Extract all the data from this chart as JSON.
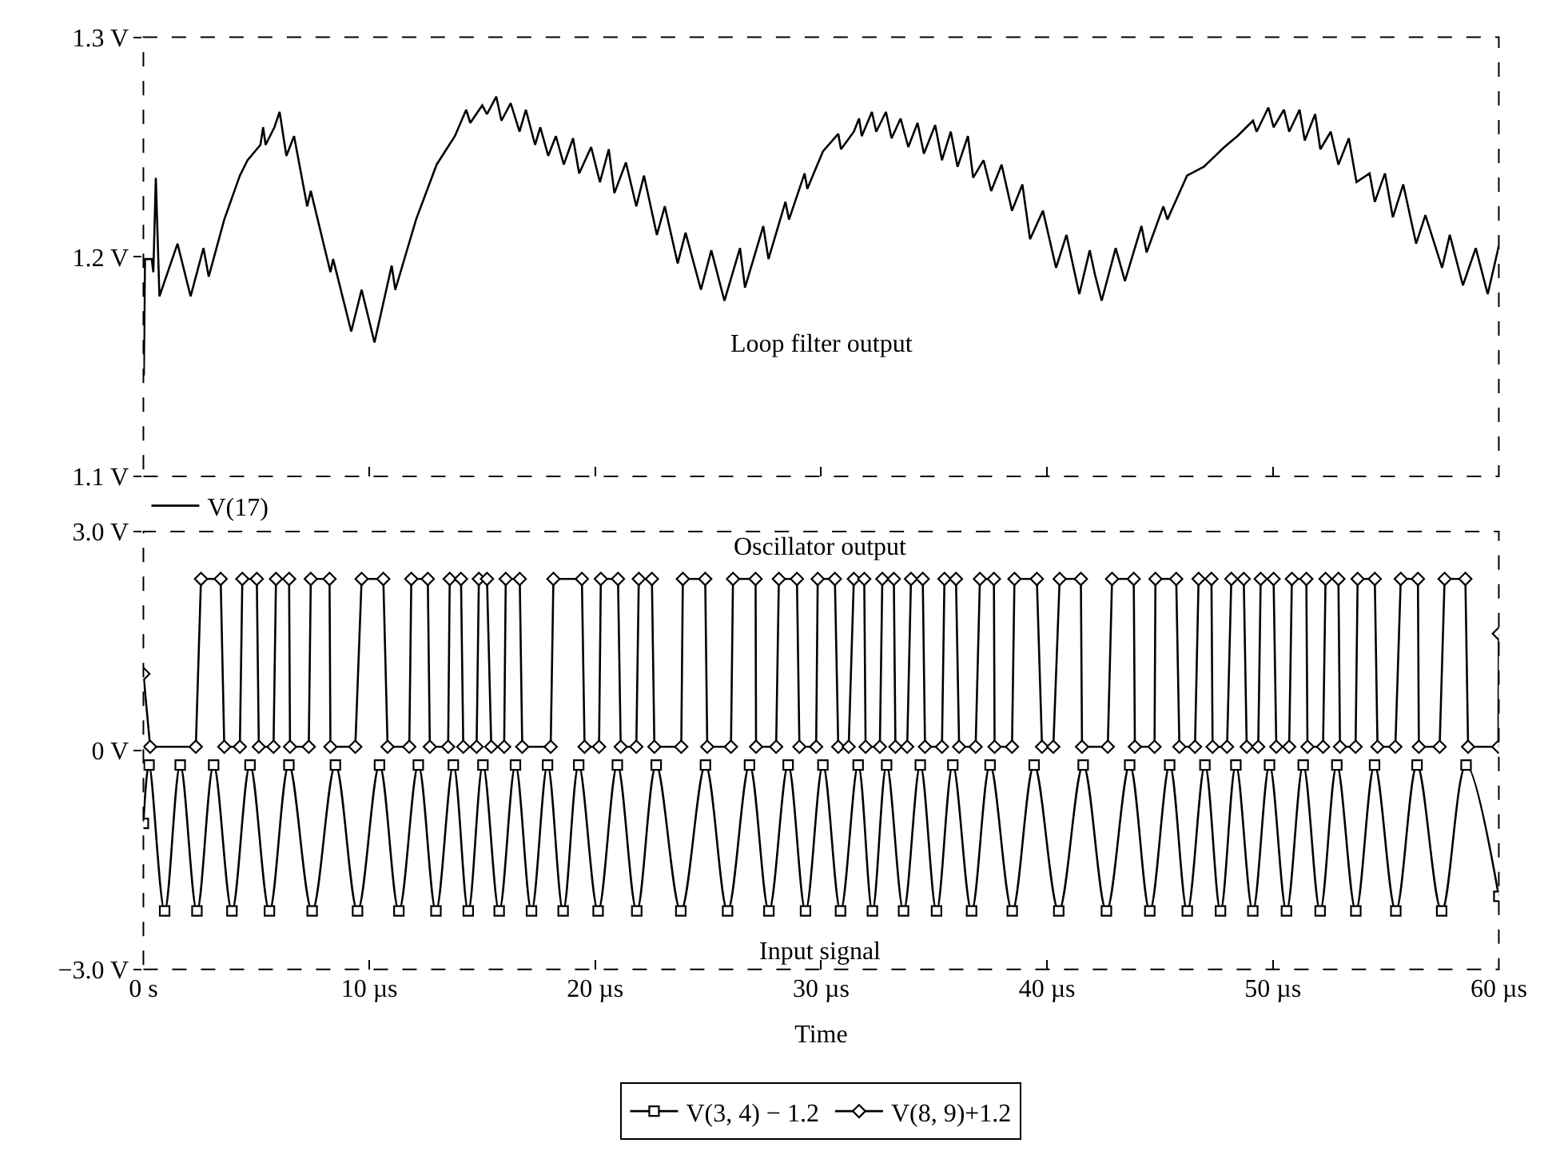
{
  "chart_data": [
    {
      "type": "line",
      "legend": "bottom left",
      "tick_labels": "y",
      "line_style": "solid",
      "xlim": [
        0,
        60
      ],
      "xticks": [
        0,
        10,
        20,
        30,
        40,
        50,
        60
      ],
      "ylim": [
        1.1,
        1.3
      ],
      "yticks": [
        {
          "value": 1.1,
          "label": "1.1 V"
        },
        {
          "value": 1.2,
          "label": "1.2 V"
        },
        {
          "value": 1.3,
          "label": "1.3 V"
        }
      ],
      "annotations": [
        "Loop filter output"
      ],
      "series": [
        {
          "name": "V(17)",
          "color": "#000000",
          "x": [
            0.02,
            0.07,
            0.37,
            0.44,
            0.55,
            0.71,
            1.51,
            2.09,
            2.66,
            2.89,
            3.58,
            4.27,
            4.61,
            5.18,
            5.3,
            5.41,
            5.8,
            6.03,
            6.33,
            6.67,
            7.25,
            7.41,
            8.28,
            8.4,
            9.2,
            9.66,
            10.23,
            10.99,
            11.15,
            12.07,
            12.98,
            13.79,
            14.29,
            14.47,
            15.0,
            15.21,
            15.62,
            15.85,
            16.26,
            16.65,
            16.93,
            17.34,
            17.57,
            17.92,
            18.26,
            18.61,
            19.02,
            19.29,
            19.82,
            20.21,
            20.6,
            20.85,
            21.36,
            21.82,
            22.16,
            22.73,
            23.08,
            23.65,
            24.0,
            24.68,
            25.14,
            25.72,
            26.41,
            26.63,
            27.44,
            27.67,
            28.42,
            28.58,
            29.27,
            29.39,
            30.08,
            30.76,
            30.88,
            31.45,
            31.68,
            31.8,
            32.25,
            32.44,
            32.87,
            33.12,
            33.52,
            33.86,
            34.27,
            34.55,
            35.05,
            35.35,
            35.74,
            36.04,
            36.5,
            36.73,
            37.19,
            37.53,
            37.99,
            38.45,
            38.91,
            39.25,
            39.82,
            40.4,
            40.86,
            41.43,
            41.89,
            42.12,
            42.42,
            43.04,
            43.45,
            44.18,
            44.41,
            45.15,
            45.33,
            46.2,
            46.94,
            47.85,
            48.43,
            49.12,
            49.28,
            49.8,
            50.03,
            50.49,
            50.72,
            51.18,
            51.41,
            51.87,
            52.1,
            52.56,
            52.9,
            53.36,
            53.7,
            54.28,
            54.51,
            54.96,
            55.31,
            55.77,
            56.34,
            56.75,
            57.49,
            57.83,
            58.41,
            58.98,
            59.51,
            60.0
          ],
          "values": [
            1.146,
            1.199,
            1.199,
            1.193,
            1.236,
            1.182,
            1.206,
            1.182,
            1.204,
            1.191,
            1.217,
            1.237,
            1.244,
            1.251,
            1.259,
            1.251,
            1.259,
            1.266,
            1.246,
            1.255,
            1.223,
            1.23,
            1.193,
            1.199,
            1.166,
            1.185,
            1.161,
            1.196,
            1.185,
            1.217,
            1.242,
            1.255,
            1.267,
            1.261,
            1.269,
            1.265,
            1.273,
            1.262,
            1.27,
            1.257,
            1.267,
            1.251,
            1.259,
            1.246,
            1.255,
            1.242,
            1.254,
            1.238,
            1.25,
            1.234,
            1.249,
            1.229,
            1.243,
            1.223,
            1.237,
            1.21,
            1.223,
            1.197,
            1.211,
            1.185,
            1.203,
            1.18,
            1.204,
            1.186,
            1.214,
            1.199,
            1.225,
            1.217,
            1.238,
            1.231,
            1.248,
            1.256,
            1.249,
            1.257,
            1.263,
            1.255,
            1.266,
            1.257,
            1.266,
            1.254,
            1.263,
            1.25,
            1.261,
            1.247,
            1.26,
            1.244,
            1.257,
            1.241,
            1.255,
            1.236,
            1.244,
            1.23,
            1.242,
            1.221,
            1.233,
            1.208,
            1.221,
            1.195,
            1.21,
            1.183,
            1.203,
            1.192,
            1.18,
            1.204,
            1.189,
            1.214,
            1.202,
            1.223,
            1.217,
            1.237,
            1.241,
            1.25,
            1.255,
            1.262,
            1.257,
            1.268,
            1.259,
            1.267,
            1.257,
            1.267,
            1.253,
            1.265,
            1.249,
            1.257,
            1.242,
            1.254,
            1.234,
            1.238,
            1.225,
            1.238,
            1.218,
            1.233,
            1.206,
            1.219,
            1.195,
            1.21,
            1.187,
            1.204,
            1.183,
            1.205
          ]
        }
      ]
    },
    {
      "type": "line",
      "legend": "bottom",
      "line_style": "solid",
      "xlabel": "Time",
      "xlim": [
        0,
        60
      ],
      "xticks": [
        {
          "value": 0,
          "label": "0 s"
        },
        {
          "value": 10,
          "label": "10 µs"
        },
        {
          "value": 20,
          "label": "20 µs"
        },
        {
          "value": 30,
          "label": "30 µs"
        },
        {
          "value": 40,
          "label": "40 µs"
        },
        {
          "value": 50,
          "label": "50 µs"
        },
        {
          "value": 60,
          "label": "60 µs"
        }
      ],
      "ylim": [
        -3.0,
        3.0
      ],
      "yticks": [
        {
          "value": -3.0,
          "label": "−3.0 V"
        },
        {
          "value": 0,
          "label": "0 V"
        },
        {
          "value": 3.0,
          "label": "3.0 V"
        }
      ],
      "annotations": [
        "Oscillator output",
        "Input signal"
      ],
      "series": [
        {
          "name": "V(3, 4) − 1.2",
          "color": "#000000",
          "marker": "square",
          "x": [
            0,
            0.25,
            0.94,
            1.63,
            2.37,
            3.11,
            3.92,
            4.72,
            5.58,
            6.44,
            7.47,
            8.5,
            9.48,
            10.45,
            11.31,
            12.17,
            12.95,
            13.72,
            14.38,
            15.03,
            15.75,
            16.47,
            17.18,
            17.89,
            18.58,
            19.27,
            20.13,
            20.98,
            21.84,
            22.7,
            23.79,
            24.88,
            25.86,
            26.83,
            27.69,
            28.54,
            29.31,
            30.08,
            30.86,
            31.64,
            32.27,
            32.9,
            33.65,
            34.39,
            35.11,
            35.83,
            36.66,
            37.48,
            38.46,
            39.43,
            40.52,
            41.6,
            42.63,
            43.66,
            44.55,
            45.43,
            46.21,
            46.99,
            47.68,
            48.36,
            49.11,
            49.85,
            50.6,
            51.34,
            52.09,
            52.83,
            53.67,
            54.5,
            55.44,
            56.38,
            57.47,
            58.55,
            60
          ],
          "values": [
            -1.0,
            -0.2,
            -2.2,
            -0.2,
            -2.2,
            -0.2,
            -2.2,
            -0.2,
            -2.2,
            -0.2,
            -2.2,
            -0.2,
            -2.2,
            -0.2,
            -2.2,
            -0.2,
            -2.2,
            -0.2,
            -2.2,
            -0.2,
            -2.2,
            -0.2,
            -2.2,
            -0.2,
            -2.2,
            -0.2,
            -2.2,
            -0.2,
            -2.2,
            -0.2,
            -2.2,
            -0.2,
            -2.2,
            -0.2,
            -2.2,
            -0.2,
            -2.2,
            -0.2,
            -2.2,
            -0.2,
            -2.2,
            -0.2,
            -2.2,
            -0.2,
            -2.2,
            -0.2,
            -2.2,
            -0.2,
            -2.2,
            -0.2,
            -2.2,
            -0.2,
            -2.2,
            -0.2,
            -2.2,
            -0.2,
            -2.2,
            -0.2,
            -2.2,
            -0.2,
            -2.2,
            -0.2,
            -2.2,
            -0.2,
            -2.2,
            -0.2,
            -2.2,
            -0.2,
            -2.2,
            -0.2,
            -2.2,
            -0.2,
            -2.0
          ]
        },
        {
          "name": "V(8, 9)+1.2",
          "color": "#000000",
          "marker": "diamond",
          "x": [
            0,
            0.3,
            2.32,
            2.55,
            3.42,
            3.58,
            4.27,
            4.38,
            5.02,
            5.11,
            5.76,
            5.87,
            6.45,
            6.49,
            7.32,
            7.41,
            8.24,
            8.28,
            9.38,
            9.66,
            10.62,
            10.81,
            11.77,
            11.86,
            12.59,
            12.68,
            13.49,
            13.56,
            14.06,
            14.16,
            14.75,
            14.85,
            15.21,
            15.4,
            15.97,
            16.04,
            16.66,
            16.77,
            18.03,
            18.15,
            19.41,
            19.53,
            20.17,
            20.25,
            21.01,
            21.13,
            21.82,
            21.93,
            22.51,
            22.62,
            23.81,
            23.88,
            24.87,
            24.96,
            26.01,
            26.1,
            27.1,
            27.12,
            28.01,
            28.13,
            28.93,
            29.04,
            29.78,
            29.85,
            30.61,
            30.76,
            31.22,
            31.45,
            31.91,
            31.97,
            32.6,
            32.71,
            33.22,
            33.29,
            33.81,
            33.98,
            34.5,
            34.6,
            35.35,
            35.46,
            35.97,
            36.11,
            36.84,
            37.03,
            37.65,
            37.68,
            38.45,
            38.56,
            39.55,
            39.78,
            40.28,
            40.56,
            41.5,
            41.55,
            42.69,
            42.88,
            43.84,
            43.89,
            44.76,
            44.8,
            45.72,
            45.86,
            46.55,
            46.71,
            47.28,
            47.33,
            47.97,
            48.16,
            48.71,
            48.84,
            49.35,
            49.46,
            50.03,
            50.15,
            50.72,
            50.84,
            51.48,
            51.53,
            52.22,
            52.33,
            52.9,
            52.97,
            53.66,
            53.75,
            54.51,
            54.63,
            55.42,
            55.66,
            56.42,
            56.46,
            57.38,
            57.6,
            58.52,
            58.64,
            59.98,
            60
          ],
          "values": [
            1.05,
            0.05,
            0.05,
            2.35,
            2.35,
            0.05,
            0.05,
            2.35,
            2.35,
            0.05,
            0.05,
            2.35,
            2.35,
            0.05,
            0.05,
            2.35,
            2.35,
            0.05,
            0.05,
            2.35,
            2.35,
            0.05,
            0.05,
            2.35,
            2.35,
            0.05,
            0.05,
            2.35,
            2.35,
            0.05,
            0.05,
            2.35,
            2.35,
            0.05,
            0.05,
            2.35,
            2.35,
            0.05,
            0.05,
            2.35,
            2.35,
            0.05,
            0.05,
            2.35,
            2.35,
            0.05,
            0.05,
            2.35,
            2.35,
            0.05,
            0.05,
            2.35,
            2.35,
            0.05,
            0.05,
            2.35,
            2.35,
            0.05,
            0.05,
            2.35,
            2.35,
            0.05,
            0.05,
            2.35,
            2.35,
            0.05,
            0.05,
            2.35,
            2.35,
            0.05,
            0.05,
            2.35,
            2.35,
            0.05,
            0.05,
            2.35,
            2.35,
            0.05,
            0.05,
            2.35,
            2.35,
            0.05,
            0.05,
            2.35,
            2.35,
            0.05,
            0.05,
            2.35,
            2.35,
            0.05,
            0.05,
            2.35,
            2.35,
            0.05,
            0.05,
            2.35,
            2.35,
            0.05,
            0.05,
            2.35,
            2.35,
            0.05,
            0.05,
            2.35,
            2.35,
            0.05,
            0.05,
            2.35,
            2.35,
            0.05,
            0.05,
            2.35,
            2.35,
            0.05,
            0.05,
            2.35,
            2.35,
            0.05,
            0.05,
            2.35,
            2.35,
            0.05,
            0.05,
            2.35,
            2.35,
            0.05,
            0.05,
            2.35,
            2.35,
            0.05,
            0.05,
            2.35,
            2.35,
            0.05,
            0.05,
            1.6
          ]
        }
      ]
    }
  ]
}
